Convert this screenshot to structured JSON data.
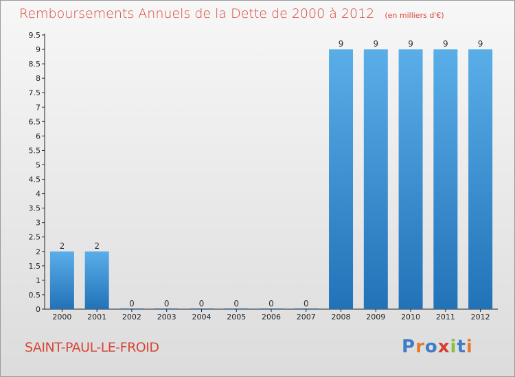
{
  "header": {
    "title": "Remboursements Annuels de la Dette de 2000 à 2012",
    "unit": "(en milliers d'€)"
  },
  "commune": "SAINT-PAUL-LE-FROID",
  "logo": {
    "text": "Proxiti",
    "colors": [
      "#3d7cc9",
      "#e8792b",
      "#3d7cc9",
      "#d63d2e",
      "#8cbf3a",
      "#3d7cc9",
      "#e8792b"
    ]
  },
  "colors": {
    "title": "#d6473a",
    "bar_top": "#5aaee8",
    "bar_bottom": "#2272b8"
  },
  "chart_data": {
    "type": "bar",
    "categories": [
      "2000",
      "2001",
      "2002",
      "2003",
      "2004",
      "2005",
      "2006",
      "2007",
      "2008",
      "2009",
      "2010",
      "2011",
      "2012"
    ],
    "values": [
      2,
      2,
      0,
      0,
      0,
      0,
      0,
      0,
      9,
      9,
      9,
      9,
      9
    ],
    "data_labels": [
      "2",
      "2",
      "0",
      "0",
      "0",
      "0",
      "0",
      "0",
      "9",
      "9",
      "9",
      "9",
      "9"
    ],
    "ylim": [
      0,
      9.5
    ],
    "y_ticks": [
      "0",
      "0.5",
      "1",
      "1.5",
      "2",
      "2.5",
      "3",
      "3.5",
      "4",
      "4.5",
      "5",
      "5.5",
      "6",
      "6.5",
      "7",
      "7.5",
      "8",
      "8.5",
      "9",
      "9.5"
    ],
    "grid": false,
    "legend": "none"
  }
}
